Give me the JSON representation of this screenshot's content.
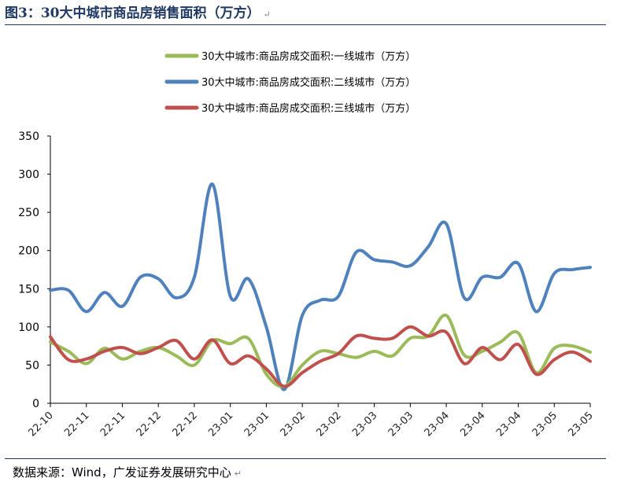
{
  "header": {
    "title": "图3：30大中城市商品房销售面积（万方）"
  },
  "footer": {
    "source": "数据来源：Wind，广发证券发展研究中心"
  },
  "chart_data": {
    "type": "line",
    "title": "图3：30大中城市商品房销售面积（万方）",
    "ylim": [
      0,
      350
    ],
    "yticks": [
      0,
      50,
      100,
      150,
      200,
      250,
      300,
      350
    ],
    "grid": false,
    "legend_position": "top-center",
    "x_tick_labels": [
      "22-10",
      "22-11",
      "22-11",
      "22-12",
      "22-12",
      "23-01",
      "23-01",
      "23-02",
      "23-02",
      "23-03",
      "23-03",
      "23-04",
      "23-04",
      "23-04",
      "23-05",
      "23-05"
    ],
    "series": [
      {
        "name": "30大中城市:商品房成交面积:一线城市（万方）",
        "color": "#9bbb59",
        "values": [
          80,
          68,
          52,
          72,
          58,
          68,
          73,
          62,
          50,
          82,
          78,
          85,
          38,
          22,
          50,
          68,
          65,
          60,
          68,
          62,
          85,
          88,
          115,
          63,
          68,
          80,
          92,
          40,
          72,
          75,
          67
        ]
      },
      {
        "name": "30大中城市:商品房成交面积:二线城市（万方）",
        "color": "#4f81bd",
        "values": [
          148,
          148,
          120,
          145,
          127,
          165,
          163,
          138,
          165,
          287,
          140,
          163,
          100,
          18,
          115,
          135,
          140,
          198,
          188,
          185,
          180,
          205,
          235,
          138,
          165,
          165,
          183,
          120,
          170,
          175,
          178
        ]
      },
      {
        "name": "30大中城市:商品房成交面积:三线城市（万方）",
        "color": "#c0504d",
        "values": [
          87,
          57,
          58,
          68,
          73,
          65,
          73,
          82,
          58,
          83,
          52,
          62,
          45,
          22,
          40,
          55,
          65,
          88,
          85,
          85,
          100,
          88,
          93,
          52,
          73,
          57,
          77,
          38,
          57,
          67,
          55
        ]
      }
    ]
  }
}
